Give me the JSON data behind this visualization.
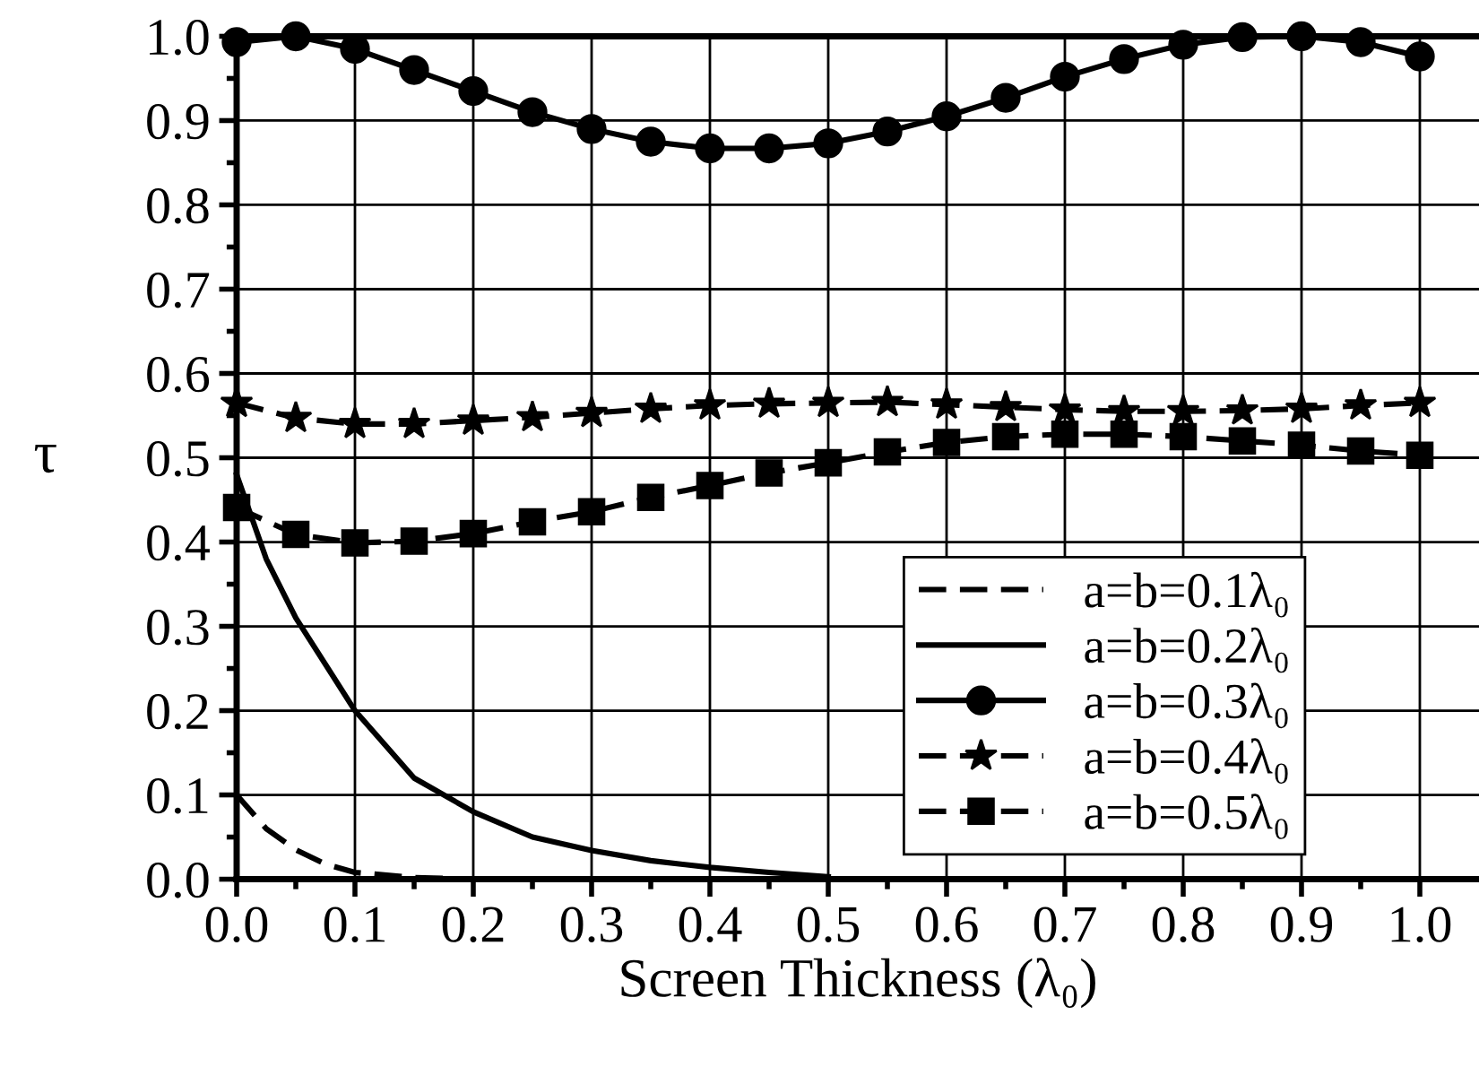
{
  "chart_data": {
    "type": "line",
    "xlabel": "Screen Thickness (λ₀)",
    "ylabel": "τ",
    "xlim": [
      0,
      1.05
    ],
    "ylim": [
      0,
      1.0
    ],
    "xticks": [
      {
        "value": 0,
        "label": "0.0"
      },
      {
        "value": 0.1,
        "label": "0.1"
      },
      {
        "value": 0.2,
        "label": "0.2"
      },
      {
        "value": 0.3,
        "label": "0.3"
      },
      {
        "value": 0.4,
        "label": "0.4"
      },
      {
        "value": 0.5,
        "label": "0.5"
      },
      {
        "value": 0.6,
        "label": "0.6"
      },
      {
        "value": 0.7,
        "label": "0.7"
      },
      {
        "value": 0.8,
        "label": "0.8"
      },
      {
        "value": 0.9,
        "label": "0.9"
      },
      {
        "value": 1.0,
        "label": "1.0"
      }
    ],
    "yticks": [
      {
        "value": 0,
        "label": "0.0"
      },
      {
        "value": 0.1,
        "label": "0.1"
      },
      {
        "value": 0.2,
        "label": "0.2"
      },
      {
        "value": 0.3,
        "label": "0.3"
      },
      {
        "value": 0.4,
        "label": "0.4"
      },
      {
        "value": 0.5,
        "label": "0.5"
      },
      {
        "value": 0.6,
        "label": "0.6"
      },
      {
        "value": 0.7,
        "label": "0.7"
      },
      {
        "value": 0.8,
        "label": "0.8"
      },
      {
        "value": 0.9,
        "label": "0.9"
      },
      {
        "value": 1.0,
        "label": "1.0"
      }
    ],
    "grid": true,
    "legend": "bottom right",
    "series": [
      {
        "name": "a=b=0.1λ₀",
        "color": "#000000",
        "marker": "none",
        "line_style": "dashed",
        "x": [
          0,
          0.025,
          0.05,
          0.075,
          0.1,
          0.15,
          0.2
        ],
        "values": [
          0.1,
          0.06,
          0.035,
          0.018,
          0.008,
          0.002,
          0.0
        ]
      },
      {
        "name": "a=b=0.2λ₀",
        "color": "#000000",
        "marker": "none",
        "line_style": "solid",
        "x": [
          0,
          0.025,
          0.05,
          0.1,
          0.15,
          0.2,
          0.25,
          0.3,
          0.35,
          0.4,
          0.45,
          0.5
        ],
        "values": [
          0.48,
          0.38,
          0.31,
          0.2,
          0.12,
          0.08,
          0.05,
          0.034,
          0.022,
          0.014,
          0.008,
          0.003
        ]
      },
      {
        "name": "a=b=0.3λ₀",
        "color": "#000000",
        "marker": "circle",
        "line_style": "solid",
        "x": [
          0,
          0.05,
          0.1,
          0.15,
          0.2,
          0.25,
          0.3,
          0.35,
          0.4,
          0.45,
          0.5,
          0.55,
          0.6,
          0.65,
          0.7,
          0.75,
          0.8,
          0.85,
          0.9,
          0.95,
          1.0
        ],
        "values": [
          0.993,
          1.0,
          0.985,
          0.96,
          0.935,
          0.91,
          0.89,
          0.875,
          0.867,
          0.867,
          0.873,
          0.887,
          0.905,
          0.927,
          0.952,
          0.973,
          0.99,
          0.999,
          1.0,
          0.993,
          0.976
        ]
      },
      {
        "name": "a=b=0.4λ₀",
        "color": "#000000",
        "marker": "star",
        "line_style": "dashed",
        "x": [
          0,
          0.05,
          0.1,
          0.15,
          0.2,
          0.25,
          0.3,
          0.35,
          0.4,
          0.45,
          0.5,
          0.55,
          0.6,
          0.65,
          0.7,
          0.75,
          0.8,
          0.85,
          0.9,
          0.95,
          1.0
        ],
        "values": [
          0.565,
          0.547,
          0.54,
          0.54,
          0.544,
          0.548,
          0.553,
          0.558,
          0.562,
          0.564,
          0.565,
          0.566,
          0.563,
          0.56,
          0.557,
          0.555,
          0.555,
          0.556,
          0.558,
          0.562,
          0.565
        ]
      },
      {
        "name": "a=b=0.5λ₀",
        "color": "#000000",
        "marker": "square",
        "line_style": "dashed",
        "x": [
          0,
          0.05,
          0.1,
          0.15,
          0.2,
          0.25,
          0.3,
          0.35,
          0.4,
          0.45,
          0.5,
          0.55,
          0.6,
          0.65,
          0.7,
          0.75,
          0.8,
          0.85,
          0.9,
          0.95,
          1.0
        ],
        "values": [
          0.441,
          0.409,
          0.399,
          0.401,
          0.41,
          0.424,
          0.436,
          0.453,
          0.467,
          0.482,
          0.494,
          0.507,
          0.518,
          0.525,
          0.528,
          0.528,
          0.525,
          0.52,
          0.515,
          0.508,
          0.503
        ]
      }
    ]
  }
}
